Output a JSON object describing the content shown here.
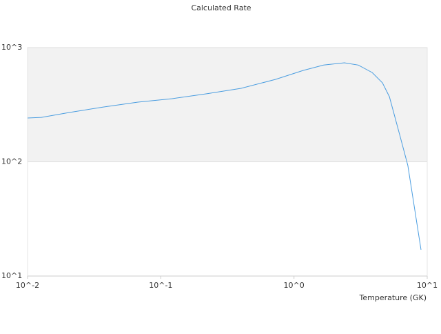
{
  "chart_data": {
    "type": "line",
    "title": "Calculated Rate",
    "x_label": "Temperature (GK)",
    "x_scale": "log",
    "y_scale": "log",
    "x": [
      0.01,
      0.0127,
      0.0204,
      0.037,
      0.0673,
      0.122,
      0.221,
      0.401,
      0.728,
      1.17,
      1.67,
      2.39,
      3.04,
      3.86,
      4.61,
      5.2,
      6.21,
      7.16,
      8.98
    ],
    "series": [
      {
        "color": "#4a9de0",
        "values": [
          242,
          245,
          270,
          302,
          333,
          357,
          394,
          440,
          527,
          631,
          703,
          736,
          703,
          605,
          492,
          372,
          173,
          92.7,
          17
        ]
      }
    ],
    "xlim": [
      0.01,
      10
    ],
    "ylim": [
      10,
      1000
    ],
    "xticks": [
      {
        "value": 0.01,
        "label": "10^-2"
      },
      {
        "value": 0.1,
        "label": "10^-1"
      },
      {
        "value": 1,
        "label": "10^0"
      },
      {
        "value": 10,
        "label": "10^1"
      }
    ],
    "yticks": [
      {
        "value": 10,
        "label": "10^1"
      },
      {
        "value": 100,
        "label": "10^2"
      },
      {
        "value": 1000,
        "label": "10^3"
      }
    ],
    "grid": true,
    "band_color": "#f2f2f2"
  }
}
